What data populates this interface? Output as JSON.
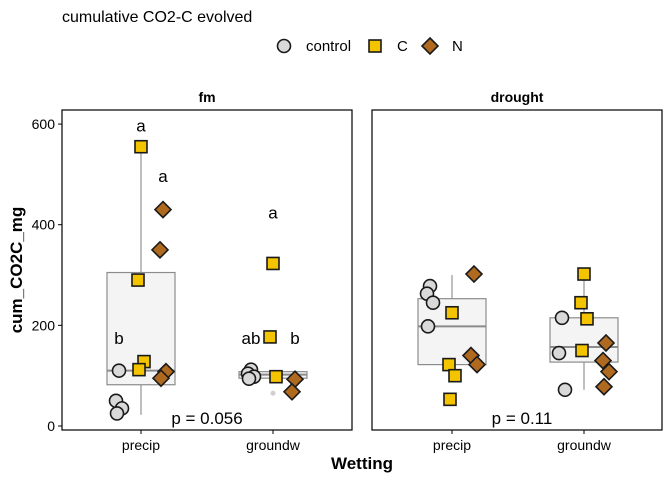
{
  "title": "cumulative CO2-C evolved",
  "legend": {
    "items": [
      {
        "label": "control",
        "shape": "circle",
        "color": "#d9d9d9"
      },
      {
        "label": "C",
        "shape": "square",
        "color": "#f5c400"
      },
      {
        "label": "N",
        "shape": "diamond",
        "color": "#b06a20"
      }
    ]
  },
  "chart_data": {
    "type": "scatter",
    "title": "cumulative CO2-C evolved",
    "xlabel": "Wetting",
    "ylabel": "cum_CO2C_mg",
    "ylim": [
      0,
      620
    ],
    "yticks": [
      0,
      200,
      400,
      600
    ],
    "categories": [
      "precip",
      "groundw"
    ],
    "legend_position": "top",
    "grid": false,
    "panels": [
      {
        "name": "fm",
        "pvalue_label": "p = 0.056",
        "boxes": [
          {
            "category": "precip",
            "q1": 82,
            "median": 110,
            "q3": 305,
            "whisker_low": 22,
            "whisker_high": 555
          },
          {
            "category": "groundw",
            "q1": 95,
            "median": 102,
            "q3": 108,
            "whisker_low": 94,
            "whisker_high": 110,
            "outliers": [
              65
            ]
          }
        ],
        "series": [
          {
            "name": "control",
            "points": [
              {
                "category": "precip",
                "y": 110
              },
              {
                "category": "precip",
                "y": 50
              },
              {
                "category": "precip",
                "y": 35
              },
              {
                "category": "precip",
                "y": 25
              },
              {
                "category": "groundw",
                "y": 112
              },
              {
                "category": "groundw",
                "y": 104
              },
              {
                "category": "groundw",
                "y": 98
              },
              {
                "category": "groundw",
                "y": 94
              }
            ]
          },
          {
            "name": "C",
            "points": [
              {
                "category": "precip",
                "y": 555
              },
              {
                "category": "precip",
                "y": 290
              },
              {
                "category": "precip",
                "y": 128
              },
              {
                "category": "precip",
                "y": 112
              },
              {
                "category": "groundw",
                "y": 323
              },
              {
                "category": "groundw",
                "y": 177
              },
              {
                "category": "groundw",
                "y": 98
              }
            ]
          },
          {
            "name": "N",
            "points": [
              {
                "category": "precip",
                "y": 430
              },
              {
                "category": "precip",
                "y": 350
              },
              {
                "category": "precip",
                "y": 108
              },
              {
                "category": "precip",
                "y": 95
              },
              {
                "category": "groundw",
                "y": 93
              },
              {
                "category": "groundw",
                "y": 68
              }
            ]
          }
        ],
        "letters": [
          {
            "text": "a",
            "category": "precip",
            "series": "C",
            "y": 597
          },
          {
            "text": "a",
            "category": "precip",
            "series": "N",
            "y": 497
          },
          {
            "text": "b",
            "category": "precip",
            "series": "control",
            "y": 175
          },
          {
            "text": "a",
            "category": "groundw",
            "series": "C",
            "y": 424
          },
          {
            "text": "ab",
            "category": "groundw",
            "series": "control",
            "y": 175
          },
          {
            "text": "b",
            "category": "groundw",
            "series": "N",
            "y": 175
          }
        ]
      },
      {
        "name": "drought",
        "pvalue_label": "p = 0.11",
        "boxes": [
          {
            "category": "precip",
            "q1": 122,
            "median": 198,
            "q3": 253,
            "whisker_low": 122,
            "whisker_high": 300
          },
          {
            "category": "groundw",
            "q1": 127,
            "median": 157,
            "q3": 215,
            "whisker_low": 72,
            "whisker_high": 300
          }
        ],
        "series": [
          {
            "name": "control",
            "points": [
              {
                "category": "precip",
                "y": 278
              },
              {
                "category": "precip",
                "y": 263
              },
              {
                "category": "precip",
                "y": 245
              },
              {
                "category": "precip",
                "y": 198
              },
              {
                "category": "groundw",
                "y": 215
              },
              {
                "category": "groundw",
                "y": 145
              },
              {
                "category": "groundw",
                "y": 72
              }
            ]
          },
          {
            "name": "C",
            "points": [
              {
                "category": "precip",
                "y": 225
              },
              {
                "category": "precip",
                "y": 122
              },
              {
                "category": "precip",
                "y": 100
              },
              {
                "category": "precip",
                "y": 53
              },
              {
                "category": "groundw",
                "y": 302
              },
              {
                "category": "groundw",
                "y": 245
              },
              {
                "category": "groundw",
                "y": 213
              },
              {
                "category": "groundw",
                "y": 150
              }
            ]
          },
          {
            "name": "N",
            "points": [
              {
                "category": "precip",
                "y": 302
              },
              {
                "category": "precip",
                "y": 140
              },
              {
                "category": "precip",
                "y": 122
              },
              {
                "category": "groundw",
                "y": 165
              },
              {
                "category": "groundw",
                "y": 130
              },
              {
                "category": "groundw",
                "y": 108
              },
              {
                "category": "groundw",
                "y": 78
              }
            ]
          }
        ],
        "letters": []
      }
    ]
  }
}
